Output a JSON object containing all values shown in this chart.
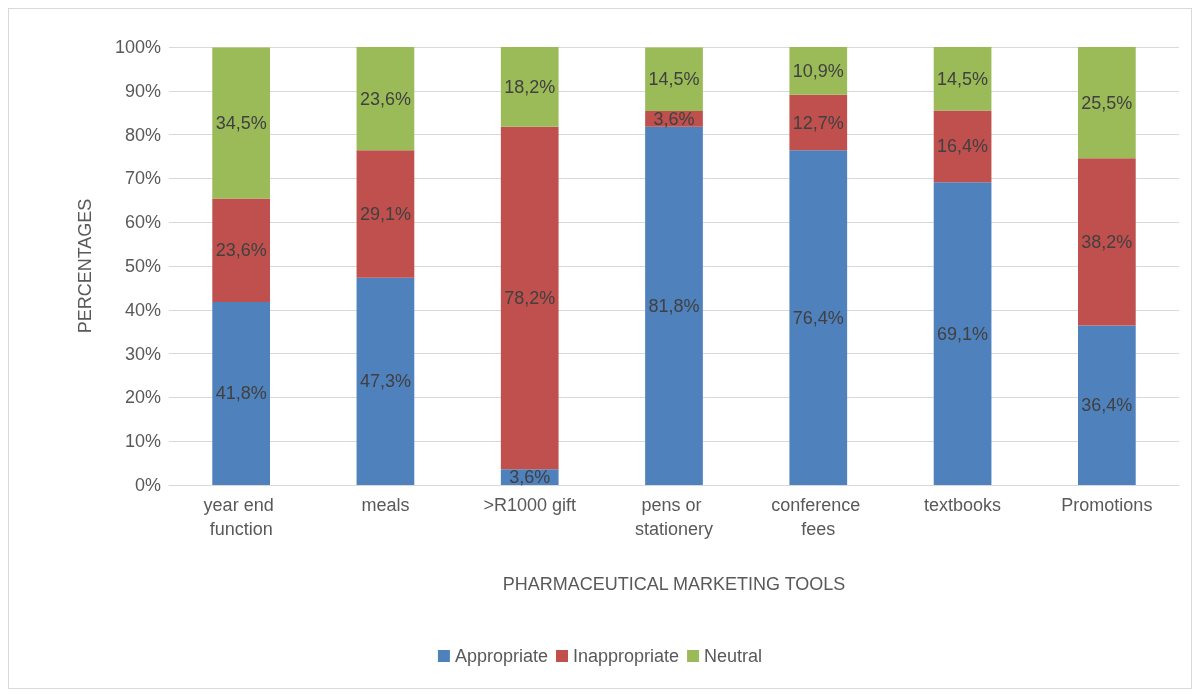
{
  "chart_data": {
    "type": "bar",
    "stacked": true,
    "xlabel": "PHARMACEUTICAL MARKETING TOOLS",
    "ylabel": "PERCENTAGES",
    "categories": [
      "year end function",
      "meals",
      ">R1000 gift",
      "pens or stationery",
      "conference fees",
      "textbooks",
      "Promotions"
    ],
    "series": [
      {
        "name": "Appropriate",
        "color": "#4f81bd",
        "values": [
          41.8,
          47.3,
          3.6,
          81.8,
          76.4,
          69.1,
          36.4
        ],
        "value_labels": [
          "41,8%",
          "47,3%",
          "3,6%",
          "81,8%",
          "76,4%",
          "69,1%",
          "36,4%"
        ]
      },
      {
        "name": "Inappropriate",
        "color": "#c0504d",
        "values": [
          23.6,
          29.1,
          78.2,
          3.6,
          12.7,
          16.4,
          38.2
        ],
        "value_labels": [
          "23,6%",
          "29,1%",
          "78,2%",
          "3,6%",
          "12,7%",
          "16,4%",
          "38,2%"
        ]
      },
      {
        "name": "Neutral",
        "color": "#9bbb59",
        "values": [
          34.5,
          23.6,
          18.2,
          14.5,
          10.9,
          14.5,
          25.5
        ],
        "value_labels": [
          "34,5%",
          "23,6%",
          "18,2%",
          "14,5%",
          "10,9%",
          "14,5%",
          "25,5%"
        ]
      }
    ],
    "ylim": [
      0,
      100
    ],
    "yticks": [
      {
        "value": 0,
        "label": "0%"
      },
      {
        "value": 10,
        "label": "10%"
      },
      {
        "value": 20,
        "label": "20%"
      },
      {
        "value": 30,
        "label": "30%"
      },
      {
        "value": 40,
        "label": "40%"
      },
      {
        "value": 50,
        "label": "50%"
      },
      {
        "value": 60,
        "label": "60%"
      },
      {
        "value": 70,
        "label": "70%"
      },
      {
        "value": 80,
        "label": "80%"
      },
      {
        "value": 90,
        "label": "90%"
      },
      {
        "value": 100,
        "label": "100%"
      }
    ],
    "grid": "y",
    "legend": "bottom"
  }
}
